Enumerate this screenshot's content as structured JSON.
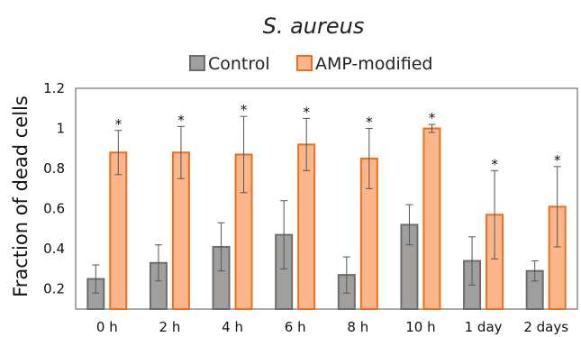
{
  "chart_data": {
    "type": "bar",
    "title": "S. aureus",
    "ylabel": "Fraction of dead cells",
    "xlabel": "",
    "ylim": [
      0.1,
      1.2
    ],
    "yticks": [
      0.2,
      0.4,
      0.6,
      0.8,
      1,
      1.2
    ],
    "legend_position": "top-center",
    "grid": false,
    "categories": [
      "0 h",
      "2 h",
      "4 h",
      "6 h",
      "8 h",
      "10 h",
      "1 day",
      "2 days"
    ],
    "series": [
      {
        "name": "Control",
        "color": "#a19f9d",
        "edge_color": "#6f6d6b",
        "values": [
          0.25,
          0.33,
          0.41,
          0.47,
          0.27,
          0.52,
          0.34,
          0.29
        ],
        "errors": [
          0.07,
          0.09,
          0.12,
          0.17,
          0.09,
          0.1,
          0.12,
          0.05
        ]
      },
      {
        "name": "AMP-modified",
        "color": "#fbb68c",
        "edge_color": "#ea6f1f",
        "values": [
          0.88,
          0.88,
          0.87,
          0.92,
          0.85,
          1.0,
          0.57,
          0.61
        ],
        "errors": [
          0.11,
          0.13,
          0.19,
          0.13,
          0.15,
          0.02,
          0.22,
          0.2
        ]
      }
    ],
    "annotations": {
      "significance_marker": "*",
      "applies_to": "AMP-modified"
    }
  }
}
